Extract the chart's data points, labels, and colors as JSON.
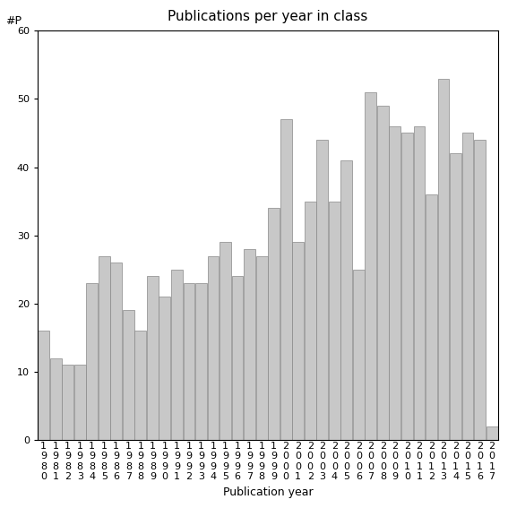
{
  "title": "Publications per year in class",
  "xlabel": "Publication year",
  "ylabel": "#P",
  "ylim": [
    0,
    60
  ],
  "yticks": [
    0,
    10,
    20,
    30,
    40,
    50,
    60
  ],
  "bar_color": "#c8c8c8",
  "bar_edgecolor": "#888888",
  "years": [
    1980,
    1981,
    1982,
    1983,
    1984,
    1985,
    1986,
    1987,
    1988,
    1989,
    1990,
    1991,
    1992,
    1993,
    1994,
    1995,
    1996,
    1997,
    1998,
    1999,
    2000,
    2001,
    2002,
    2003,
    2004,
    2005,
    2006,
    2007,
    2008,
    2009,
    2010,
    2011,
    2012,
    2013,
    2014,
    2015,
    2016,
    2017
  ],
  "values": [
    16,
    12,
    11,
    11,
    23,
    27,
    26,
    19,
    16,
    24,
    21,
    25,
    23,
    23,
    27,
    29,
    24,
    28,
    27,
    34,
    47,
    29,
    35,
    44,
    35,
    41,
    25,
    51,
    49,
    46,
    45,
    46,
    36,
    53,
    42,
    45,
    44,
    2
  ],
  "title_fontsize": 11,
  "label_fontsize": 9,
  "tick_fontsize": 8
}
